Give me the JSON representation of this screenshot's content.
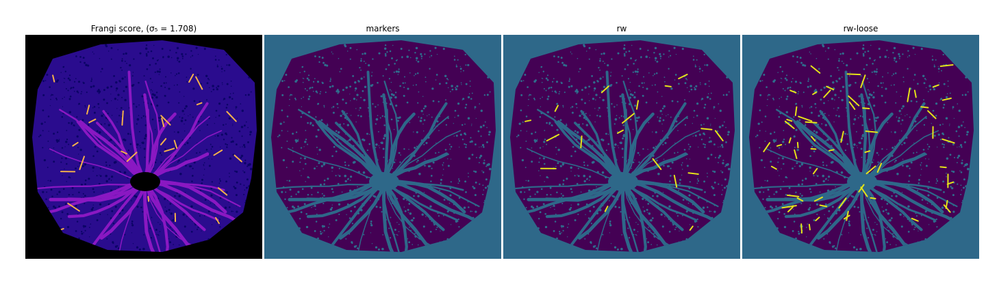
{
  "figure": {
    "panels": [
      {
        "title": "Frangi score, (σ₅ = 1.708)",
        "colormap": "plasma",
        "colors": {
          "background": "#000000",
          "tissue": "#2a0c8e",
          "texture": "#0b0466",
          "vessel": "#8a18c2",
          "vessel_hot": "#f5b14a"
        }
      },
      {
        "title": "markers",
        "colormap": "viridis",
        "colors": {
          "background": "#2e6889",
          "tissue": "#440154",
          "texture": "#2f6c8c",
          "vessel": "#2e6889",
          "vessel_hot": "#3aa89a"
        }
      },
      {
        "title": "rw",
        "colormap": "viridis",
        "colors": {
          "background": "#2e6889",
          "tissue": "#440154",
          "texture": "#2f6c8c",
          "vessel": "#2e6889",
          "vessel_hot": "#e6e418"
        }
      },
      {
        "title": "rw-loose",
        "colormap": "viridis",
        "colors": {
          "background": "#2e6889",
          "tissue": "#440154",
          "texture": "#2f6c8c",
          "vessel": "#2e6889",
          "vessel_hot": "#e6e418"
        }
      }
    ]
  }
}
